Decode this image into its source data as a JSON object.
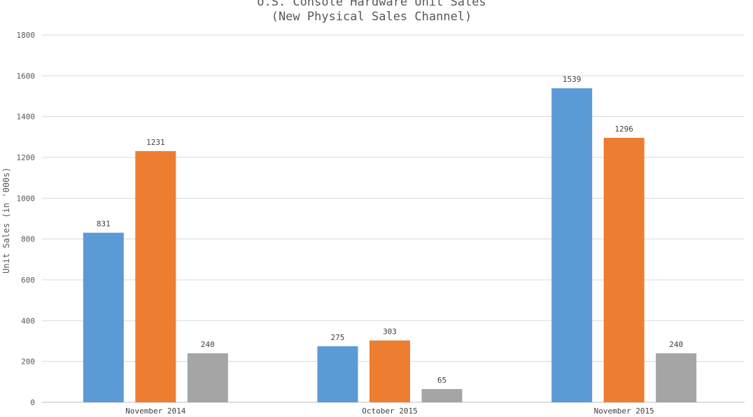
{
  "chart_data": {
    "type": "bar",
    "title": "U.S. Console Hardware Unit Sales",
    "subtitle": "(New Physical Sales Channel)",
    "xlabel": "",
    "ylabel": "Unit Sales (in '000s)",
    "ylim": [
      0,
      1800
    ],
    "yticks": [
      0,
      200,
      400,
      600,
      800,
      1000,
      1200,
      1400,
      1600,
      1800
    ],
    "grid": true,
    "legend": "none",
    "categories": [
      "November 2014",
      "October 2015",
      "November 2015"
    ],
    "series": [
      {
        "values": [
          831,
          275,
          1539
        ],
        "color": "#5b9bd5"
      },
      {
        "values": [
          1231,
          303,
          1296
        ],
        "color": "#ed7d31"
      },
      {
        "values": [
          240,
          65,
          240
        ],
        "color": "#a5a5a5"
      }
    ]
  }
}
